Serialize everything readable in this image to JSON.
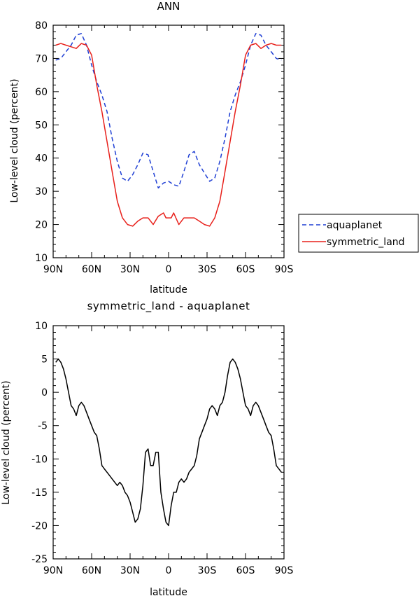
{
  "chart_data": [
    {
      "type": "line",
      "title": "ANN",
      "xlabel": "latitude",
      "ylabel": "Low-level cloud (percent)",
      "xlim": [
        -90,
        90
      ],
      "ylim": [
        10,
        80
      ],
      "xticks": [
        {
          "value": -90,
          "label": "90N"
        },
        {
          "value": -60,
          "label": "60N"
        },
        {
          "value": -30,
          "label": "30N"
        },
        {
          "value": 0,
          "label": "0"
        },
        {
          "value": 30,
          "label": "30S"
        },
        {
          "value": 60,
          "label": "60S"
        },
        {
          "value": 90,
          "label": "90S"
        }
      ],
      "yticks": [
        10,
        20,
        30,
        40,
        50,
        60,
        70,
        80
      ],
      "legend_placement": "outside-right",
      "series": [
        {
          "name": "aquaplanet",
          "color": "#1f3fd4",
          "dash": "dashed",
          "x": [
            -88,
            -84,
            -80,
            -76,
            -72,
            -68,
            -64,
            -60,
            -56,
            -52,
            -48,
            -44,
            -40,
            -36,
            -32,
            -28,
            -24,
            -20,
            -16,
            -12,
            -8,
            -4,
            0,
            4,
            8,
            12,
            16,
            20,
            24,
            28,
            32,
            36,
            40,
            44,
            48,
            52,
            56,
            60,
            64,
            68,
            72,
            76,
            80,
            84,
            88
          ],
          "y": [
            69.5,
            70,
            72,
            74,
            77,
            77.5,
            74,
            68,
            63,
            59,
            54,
            46,
            39,
            34,
            33,
            35,
            38,
            41.5,
            41,
            36,
            31,
            32.5,
            33,
            32,
            31.5,
            36,
            41,
            42,
            38,
            35.5,
            33,
            34,
            39,
            46,
            54,
            59,
            63,
            68,
            74,
            77.5,
            77,
            74,
            72,
            70,
            69.5
          ]
        },
        {
          "name": "symmetric_land",
          "color": "#e8201b",
          "dash": "solid",
          "x": [
            -88,
            -84,
            -80,
            -76,
            -72,
            -68,
            -64,
            -60,
            -56,
            -52,
            -48,
            -44,
            -40,
            -36,
            -32,
            -28,
            -24,
            -20,
            -16,
            -12,
            -8,
            -4,
            -2,
            0,
            2,
            4,
            8,
            12,
            16,
            20,
            24,
            28,
            32,
            36,
            40,
            44,
            48,
            52,
            56,
            60,
            64,
            68,
            72,
            76,
            80,
            84,
            88
          ],
          "y": [
            74,
            74.5,
            74,
            73.5,
            73,
            74.5,
            74,
            71,
            62,
            54,
            45,
            36,
            27,
            22,
            20,
            19.5,
            21,
            22,
            22,
            20,
            22.5,
            23.5,
            22,
            22,
            22,
            23.5,
            20,
            22,
            22,
            22,
            21,
            20,
            19.5,
            22,
            27,
            36,
            45,
            54,
            62,
            71,
            74,
            74.5,
            73,
            74,
            74.5,
            74,
            74
          ]
        }
      ]
    },
    {
      "type": "line",
      "title": "symmetric_land - aquaplanet",
      "xlabel": "latitude",
      "ylabel": "Low-level cloud (percent)",
      "xlim": [
        -90,
        90
      ],
      "ylim": [
        -25,
        10
      ],
      "xticks": [
        {
          "value": -90,
          "label": "90N"
        },
        {
          "value": -60,
          "label": "60N"
        },
        {
          "value": -30,
          "label": "30N"
        },
        {
          "value": 0,
          "label": "0"
        },
        {
          "value": 30,
          "label": "30S"
        },
        {
          "value": 60,
          "label": "60S"
        },
        {
          "value": 90,
          "label": "90S"
        }
      ],
      "yticks": [
        -25,
        -20,
        -15,
        -10,
        -5,
        0,
        5,
        10
      ],
      "series": [
        {
          "color": "#000000",
          "dash": "solid",
          "x": [
            -88,
            -86,
            -84,
            -82,
            -80,
            -78,
            -76,
            -74,
            -72,
            -70,
            -68,
            -66,
            -64,
            -62,
            -60,
            -58,
            -56,
            -54,
            -52,
            -50,
            -48,
            -46,
            -44,
            -42,
            -40,
            -38,
            -36,
            -34,
            -32,
            -30,
            -28,
            -26,
            -24,
            -22,
            -20,
            -18,
            -16,
            -14,
            -12,
            -10,
            -8,
            -6,
            -4,
            -2,
            0,
            2,
            4,
            6,
            8,
            10,
            12,
            14,
            16,
            18,
            20,
            22,
            24,
            26,
            28,
            30,
            32,
            34,
            36,
            38,
            40,
            42,
            44,
            46,
            48,
            50,
            52,
            54,
            56,
            58,
            60,
            62,
            64,
            66,
            68,
            70,
            72,
            74,
            76,
            78,
            80,
            82,
            84,
            86,
            88
          ],
          "y": [
            4.5,
            5,
            4.5,
            3.5,
            2,
            0,
            -2,
            -2.5,
            -3.5,
            -2,
            -1.5,
            -2,
            -3,
            -4,
            -5,
            -6,
            -6.5,
            -8.5,
            -11,
            -11.5,
            -12,
            -12.5,
            -13,
            -13.5,
            -14,
            -13.5,
            -14,
            -15,
            -15.5,
            -16.5,
            -18,
            -19.5,
            -19,
            -17.5,
            -14,
            -9,
            -8.5,
            -11,
            -11,
            -9,
            -9,
            -15,
            -17.5,
            -19.5,
            -20,
            -17,
            -15,
            -15,
            -13.5,
            -13,
            -13.5,
            -13,
            -12,
            -11.5,
            -11,
            -9.5,
            -7,
            -6,
            -5,
            -4,
            -2.5,
            -2,
            -2.5,
            -3.5,
            -2,
            -1.5,
            0,
            2.5,
            4.5,
            5,
            4.5,
            3.5,
            2,
            0,
            -2,
            -2.5,
            -3.5,
            -2,
            -1.5,
            -2,
            -3,
            -4,
            -5,
            -6,
            -6.5,
            -8.5,
            -11,
            -11.5,
            -12
          ]
        }
      ]
    }
  ]
}
